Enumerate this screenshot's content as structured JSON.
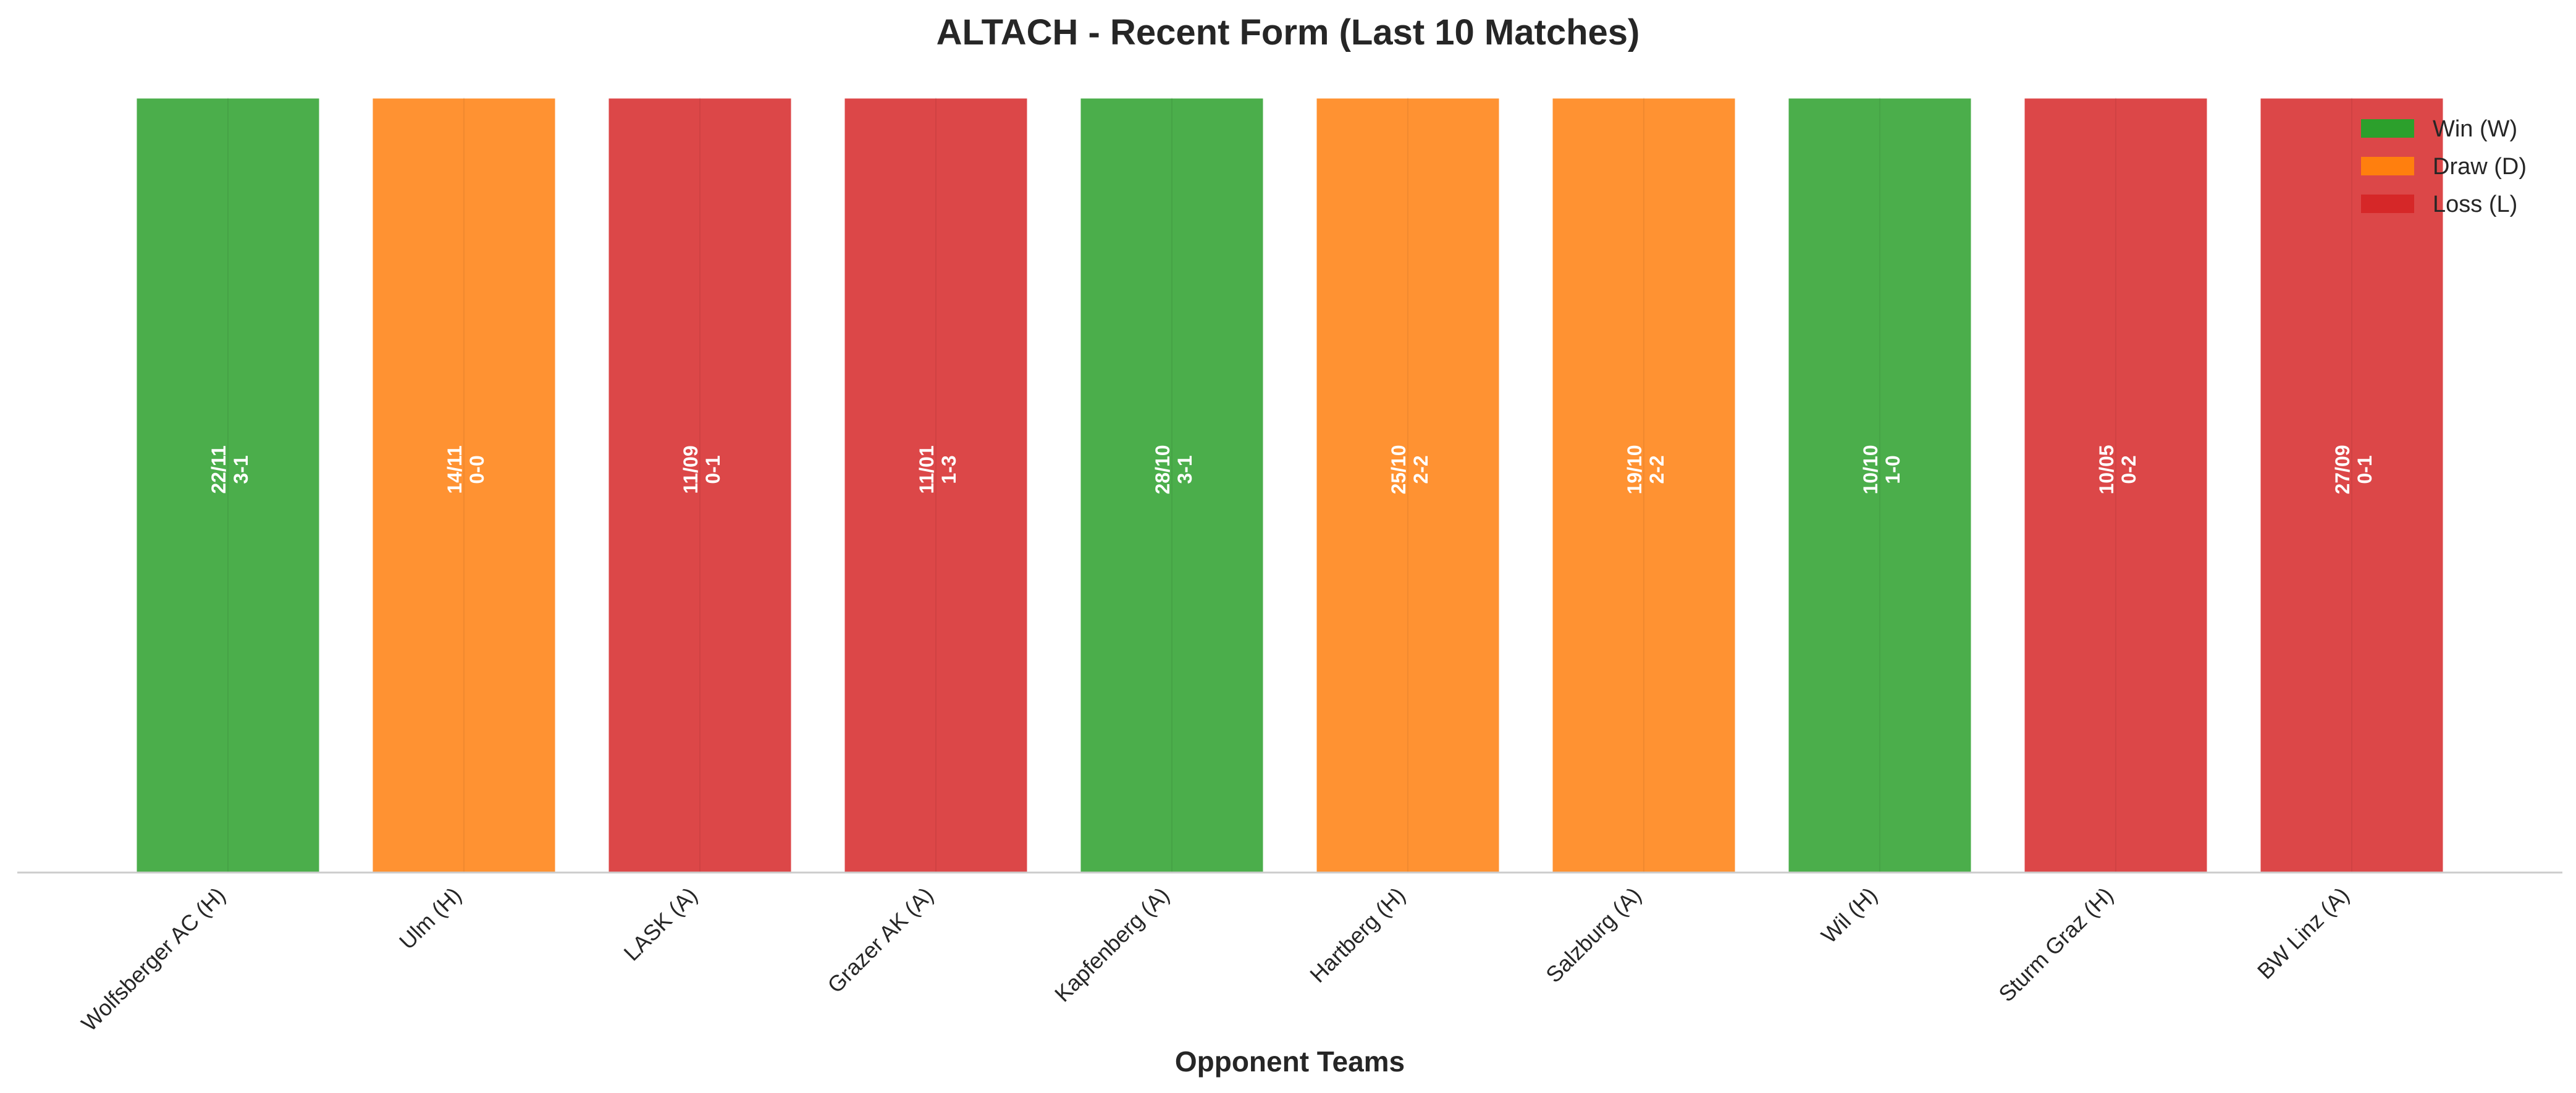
{
  "chart_data": {
    "type": "bar",
    "title": "ALTACH - Recent Form (Last 10 Matches)",
    "xlabel": "Opponent Teams",
    "ylabel": "",
    "ylim": [
      0,
      1
    ],
    "grid": false,
    "legend_position": "top-right",
    "categories": [
      "Wolfsberger AC (H)",
      "Ulm (H)",
      "LASK (A)",
      "Grazer AK (A)",
      "Kapfenberg (A)",
      "Hartberg (H)",
      "Salzburg (A)",
      "Wil (H)",
      "Sturm Graz (H)",
      "BW Linz (A)"
    ],
    "values": [
      1,
      1,
      1,
      1,
      1,
      1,
      1,
      1,
      1,
      1
    ],
    "results": [
      "W",
      "D",
      "L",
      "L",
      "W",
      "D",
      "D",
      "W",
      "L",
      "L"
    ],
    "dates": [
      "22/11",
      "14/11",
      "11/09",
      "11/01",
      "28/10",
      "25/10",
      "19/10",
      "10/10",
      "10/05",
      "27/09"
    ],
    "scores": [
      "3-1",
      "0-0",
      "0-1",
      "1-3",
      "3-1",
      "2-2",
      "2-2",
      "1-0",
      "0-2",
      "0-1"
    ],
    "legend": [
      {
        "key": "W",
        "label": "Win (W)",
        "color": "#2ca02c"
      },
      {
        "key": "D",
        "label": "Draw (D)",
        "color": "#ff7f0e"
      },
      {
        "key": "L",
        "label": "Loss (L)",
        "color": "#d62728"
      }
    ]
  }
}
